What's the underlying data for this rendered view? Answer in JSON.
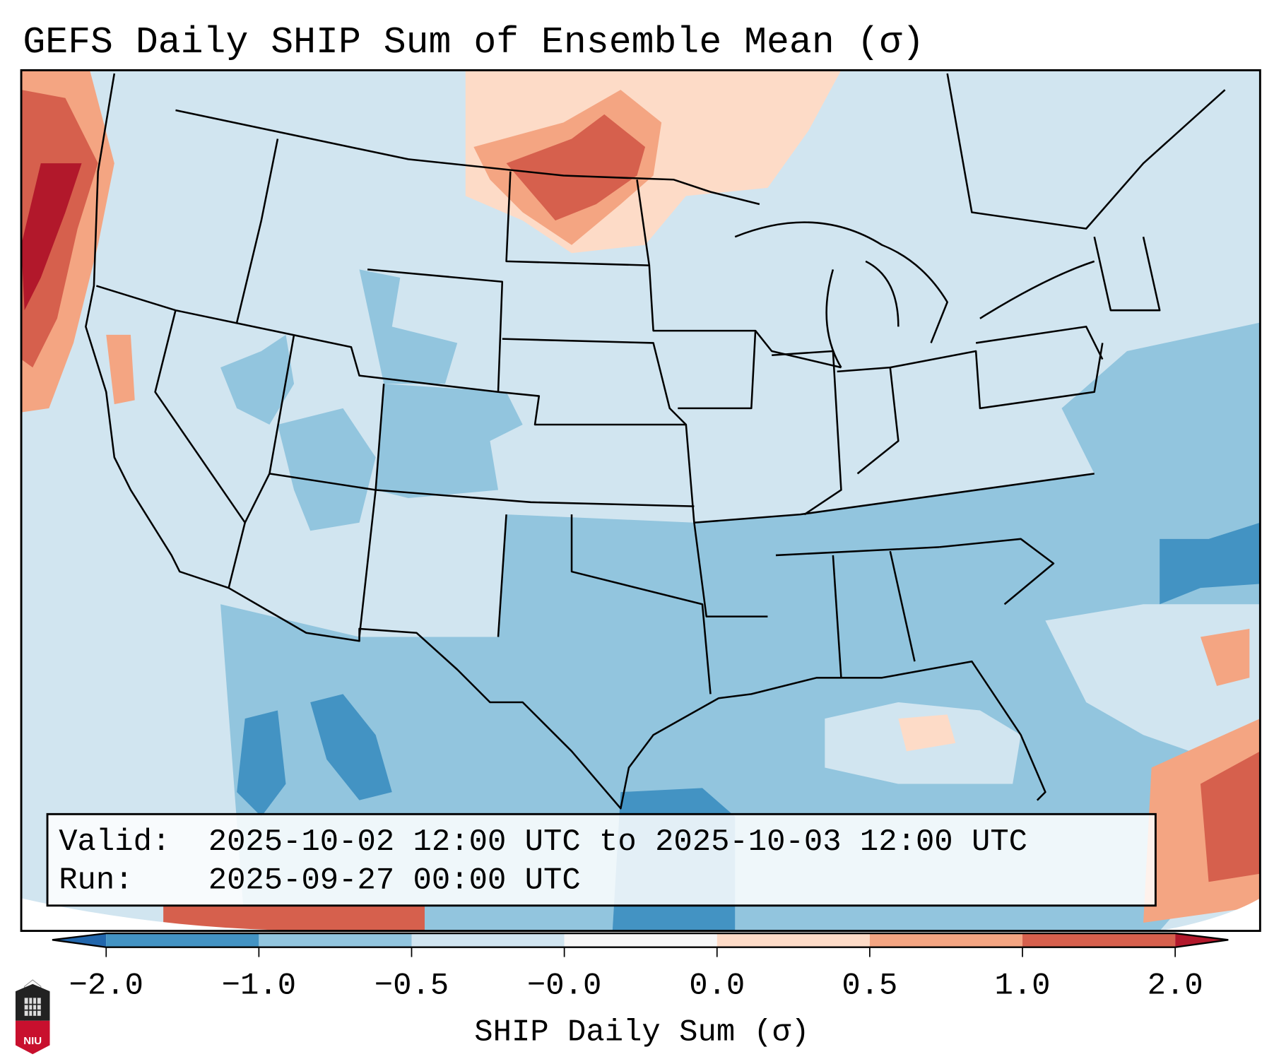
{
  "title": "GEFS Daily SHIP Sum of Ensemble Mean (σ)",
  "info_box": {
    "valid_label": "Valid:",
    "valid_value": "2025-10-02 12:00 UTC to 2025-10-03 12:00 UTC",
    "run_label": "Run:",
    "run_value": "2025-09-27 00:00 UTC"
  },
  "colorbar": {
    "label": "SHIP Daily Sum (σ)",
    "tick_labels": [
      "−2.0",
      "−1.0",
      "−0.5",
      "−0.0",
      "0.0",
      "0.5",
      "1.0",
      "2.0"
    ],
    "colors": {
      "under": "#2166ac",
      "bin_m2_m1": "#4393c3",
      "bin_m1_m05": "#92c5de",
      "bin_m05_m0": "#d1e5f0",
      "bin_m0_0": "#f7f7f7",
      "bin_0_05": "#fddbc7",
      "bin_05_1": "#f4a582",
      "bin_1_2": "#d6604d",
      "over": "#b2182b"
    }
  },
  "logo": {
    "text": "NIU"
  }
}
